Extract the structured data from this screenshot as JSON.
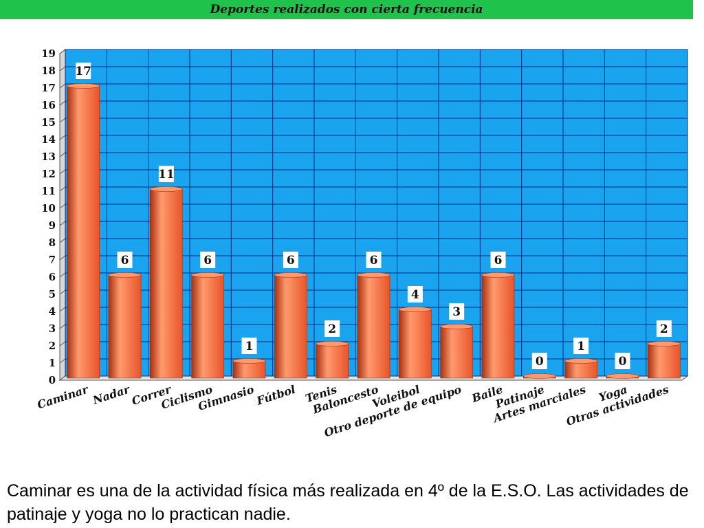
{
  "slide": {
    "title": "Deportes realizados con cierta frecuencia",
    "caption": "Caminar es una de la actividad física más realizada en 4º de la E.S.O. Las actividades de patinaje y yoga no lo practican nadie."
  },
  "colors": {
    "title_bar": "#1fc24a",
    "plot_background": "#1aa3ef",
    "grid": "#0a2a80",
    "bar": "#e8542a",
    "bar_highlight": "#ff9a6e",
    "bar_shadow": "#a8300f"
  },
  "chart_data": {
    "type": "bar",
    "title": "Deportes realizados con cierta frecuencia",
    "xlabel": "",
    "ylabel": "",
    "ylim": [
      0,
      19
    ],
    "yticks": [
      0,
      1,
      2,
      3,
      4,
      5,
      6,
      7,
      8,
      9,
      10,
      11,
      12,
      13,
      14,
      15,
      16,
      17,
      18,
      19
    ],
    "grid": true,
    "legend": "none",
    "categories": [
      "Caminar",
      "Nadar",
      "Correr",
      "Ciclismo",
      "Gimnasio",
      "Fútbol",
      "Tenis",
      "Baloncesto",
      "Voleibol",
      "Otro deporte de equipo",
      "Baile",
      "Patinaje",
      "Artes marciales",
      "Yoga",
      "Otras actividades"
    ],
    "values": [
      17,
      6,
      11,
      6,
      1,
      6,
      2,
      6,
      4,
      3,
      6,
      0,
      1,
      0,
      2
    ]
  }
}
